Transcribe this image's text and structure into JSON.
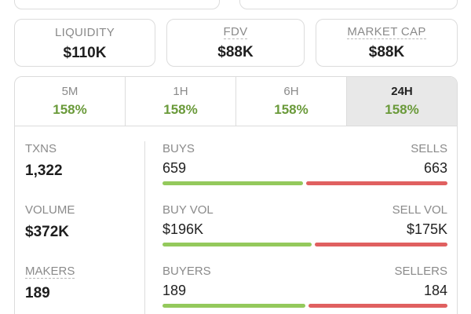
{
  "stats": [
    {
      "id": "liquidity",
      "label": "LIQUIDITY",
      "value": "$110K"
    },
    {
      "id": "fdv",
      "label": "FDV",
      "value": "$88K"
    },
    {
      "id": "mcap",
      "label": "MARKET CAP",
      "value": "$88K"
    }
  ],
  "tabs": [
    {
      "label": "5M",
      "value": "158%"
    },
    {
      "label": "1H",
      "value": "158%"
    },
    {
      "label": "6H",
      "value": "158%"
    },
    {
      "label": "24H",
      "value": "158%"
    }
  ],
  "active_tab": "24H",
  "metrics": {
    "txns": {
      "label": "TXNS",
      "value": "1,322"
    },
    "volume": {
      "label": "VOLUME",
      "value": "$372K"
    },
    "makers": {
      "label": "MAKERS",
      "value": "189"
    }
  },
  "splits": {
    "txns": {
      "left_label": "BUYS",
      "left_value": "659",
      "right_label": "SELLS",
      "right_value": "663",
      "buy_fraction": 0.498
    },
    "volume": {
      "left_label": "BUY VOL",
      "left_value": "$196K",
      "right_label": "SELL VOL",
      "right_value": "$175K",
      "buy_fraction": 0.528
    },
    "makers": {
      "left_label": "BUYERS",
      "left_value": "189",
      "right_label": "SELLERS",
      "right_value": "184",
      "buy_fraction": 0.507
    }
  },
  "colors": {
    "positive": "#6a9a3a",
    "buy_bar": "#94c95c",
    "sell_bar": "#e06060"
  }
}
